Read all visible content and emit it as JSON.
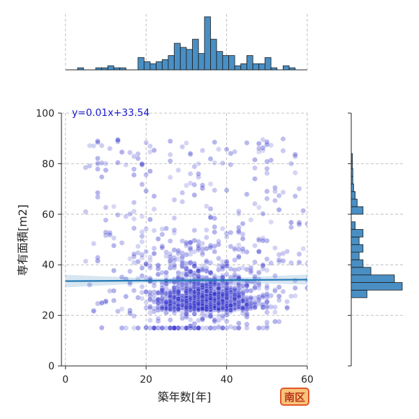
{
  "chart_data": {
    "type": "scatter",
    "xlabel": "築年数[年]",
    "ylabel": "専有面積[m2]",
    "xlim": [
      -1,
      60
    ],
    "ylim": [
      0,
      100
    ],
    "x_ticks": [
      0,
      20,
      40,
      60
    ],
    "y_ticks": [
      0,
      20,
      40,
      60,
      80,
      100
    ],
    "grid": true,
    "regression": {
      "label": "y=0.01x+33.54",
      "slope": 0.01,
      "intercept": 33.54
    },
    "district_badge": "南区",
    "top_histogram": {
      "bin_width": 1.5,
      "counts": [
        0,
        0,
        1,
        0,
        0,
        1,
        1,
        2,
        1,
        1,
        0,
        0,
        6,
        4,
        3,
        4,
        5,
        7,
        13,
        11,
        10,
        15,
        8,
        26,
        15,
        9,
        7,
        7,
        2,
        3,
        7,
        3,
        3,
        6,
        1,
        0,
        2,
        1
      ]
    },
    "right_histogram": {
      "bin_width": 3,
      "counts": [
        0,
        0,
        0,
        0,
        4,
        13,
        11,
        5,
        3,
        2,
        3,
        2,
        3,
        1,
        0,
        0,
        0,
        0,
        0,
        0,
        0,
        0,
        0,
        0,
        0,
        0,
        0,
        0,
        0,
        0,
        0,
        0,
        0,
        0
      ],
      "bin_start": 15
    },
    "point_density_note": "approximately 1600 scatter points, densest at x 25-45, y 15-30",
    "colors": {
      "points": "#3333cc",
      "line": "#1f77b4",
      "hist": "#4a8fc4",
      "badge_bg": "#f9c47a",
      "badge_border": "#e0562a"
    }
  }
}
